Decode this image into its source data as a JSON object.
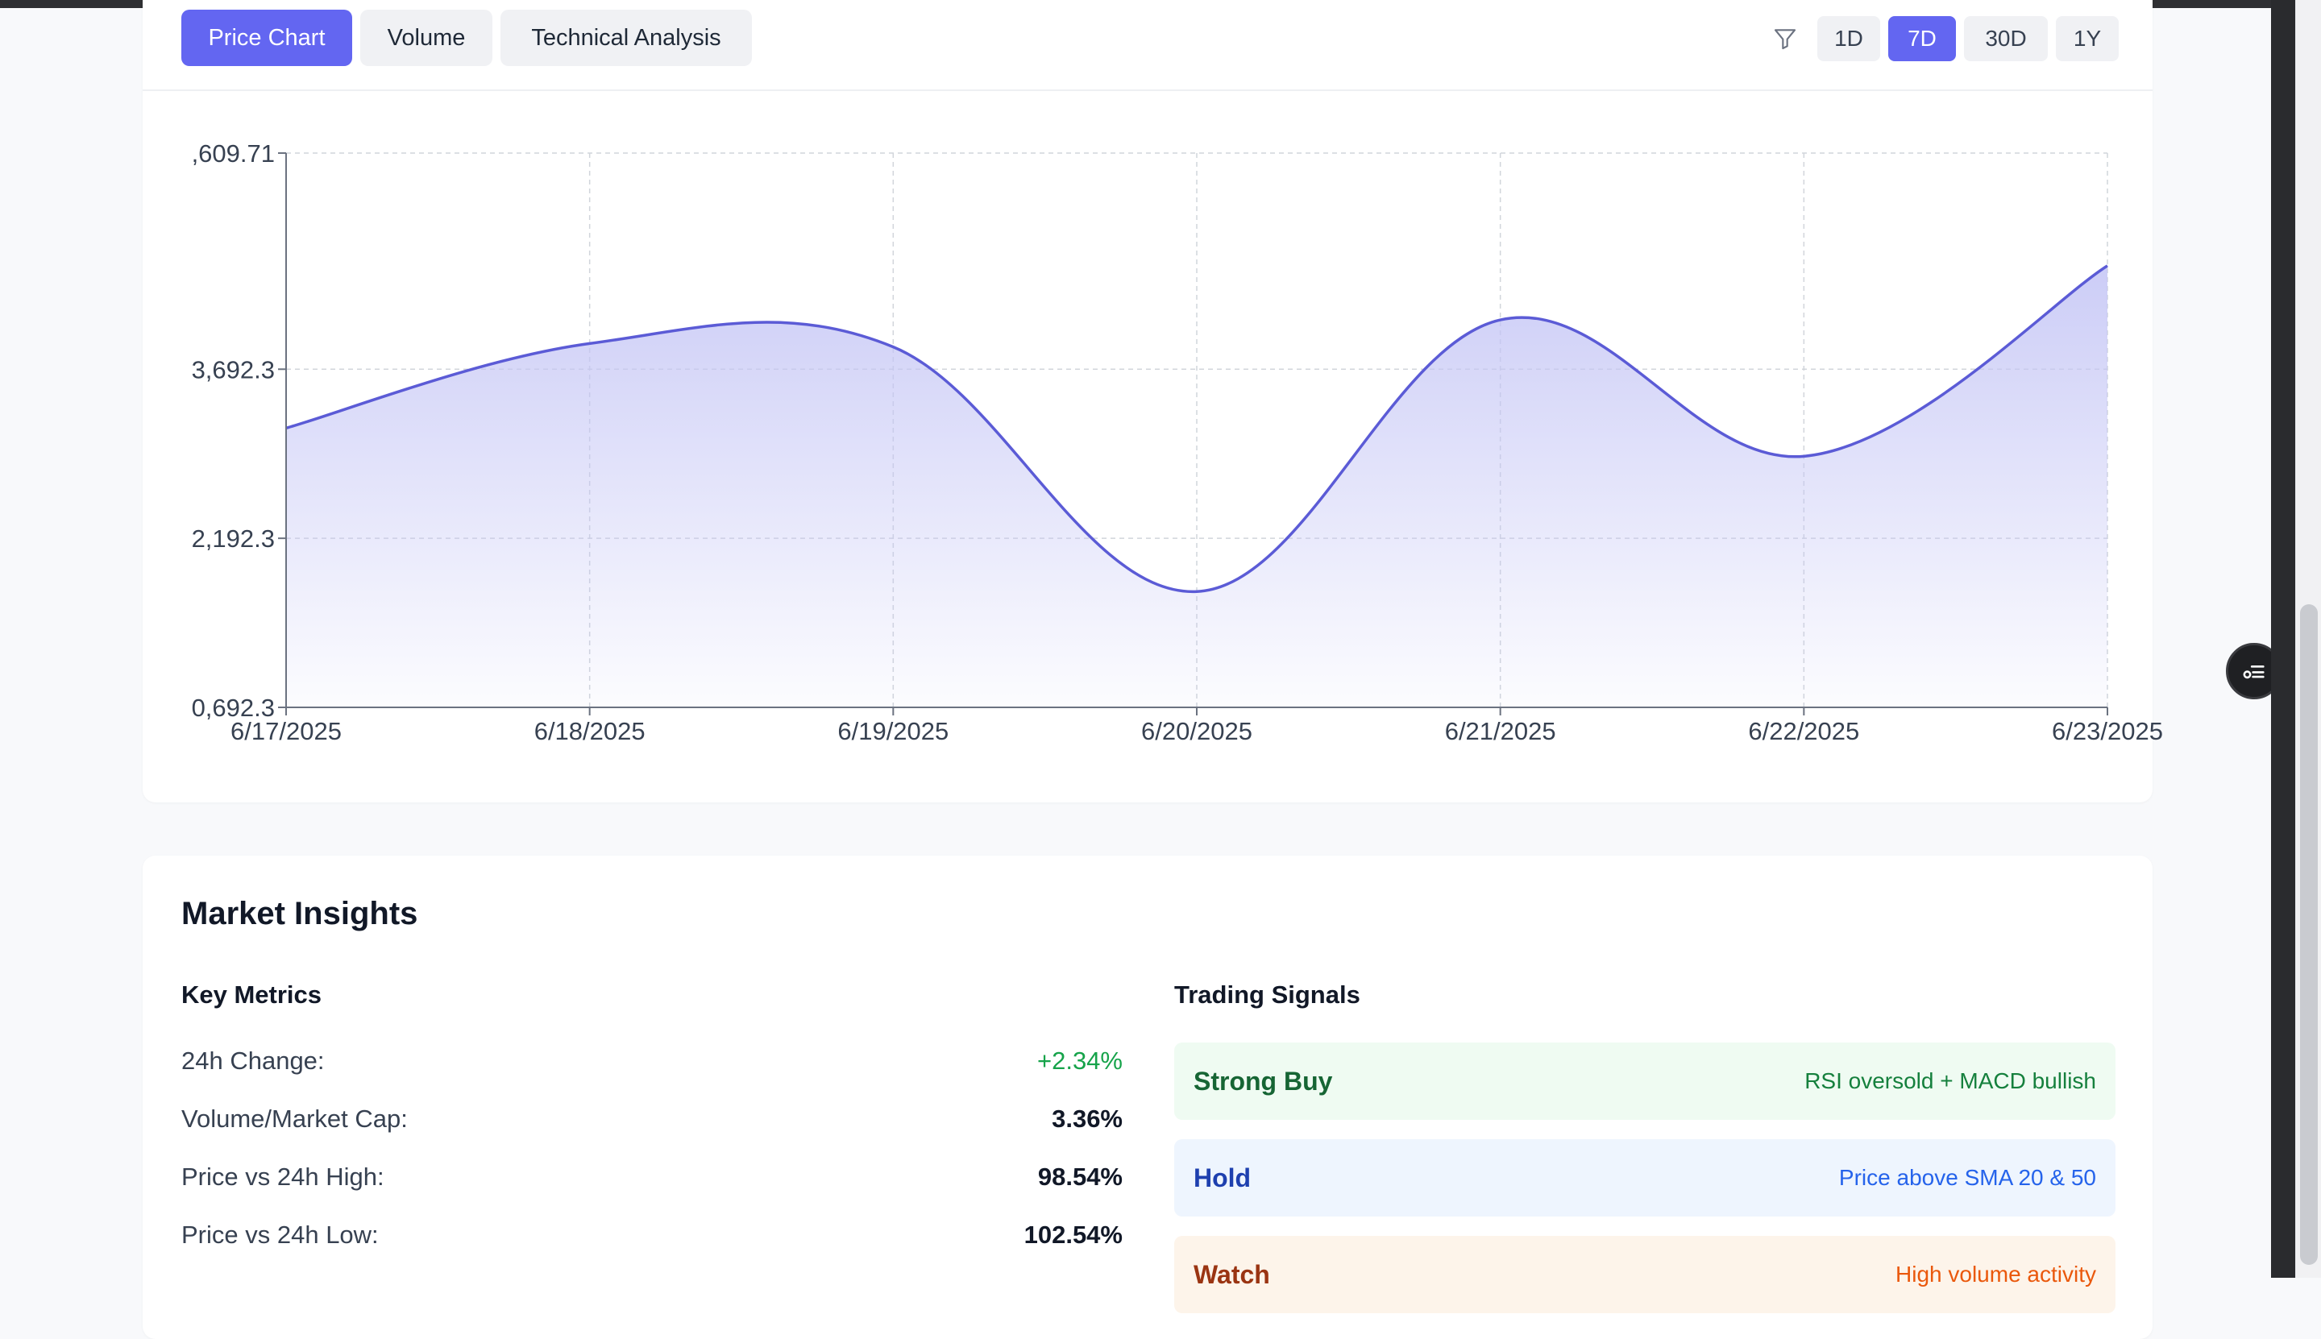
{
  "tabs": [
    {
      "label": "Price Chart",
      "active": true
    },
    {
      "label": "Volume",
      "active": false
    },
    {
      "label": "Technical Analysis",
      "active": false
    }
  ],
  "filter_icon": "filter-icon",
  "ranges": [
    {
      "label": "1D",
      "active": false
    },
    {
      "label": "7D",
      "active": true
    },
    {
      "label": "30D",
      "active": false
    },
    {
      "label": "1Y",
      "active": false
    }
  ],
  "chart_data": {
    "type": "area",
    "x": [
      "6/17/2025",
      "6/18/2025",
      "6/19/2025",
      "6/20/2025",
      "6/21/2025",
      "6/22/2025",
      "6/23/2025"
    ],
    "y_tick_labels": [
      ",609.71",
      "3,692.3",
      "2,192.3",
      "0,692.3"
    ],
    "y_ticks": [
      5609.71,
      3692.3,
      2192.3,
      692.3
    ],
    "series": [
      {
        "values": [
          3170,
          3920,
          3890,
          1720,
          4130,
          2920,
          4610
        ]
      }
    ],
    "ylim": [
      692.3,
      5609.71
    ],
    "grid": true,
    "line_color": "#5b5bd6",
    "fill_color": "#c7c8f7"
  },
  "insights": {
    "title": "Market Insights",
    "key_metrics_title": "Key Metrics",
    "trading_signals_title": "Trading Signals",
    "metrics": [
      {
        "label": "24h Change:",
        "value": "+2.34%",
        "positive": true
      },
      {
        "label": "Volume/Market Cap:",
        "value": "3.36%",
        "positive": false
      },
      {
        "label": "Price vs 24h High:",
        "value": "98.54%",
        "positive": false
      },
      {
        "label": "Price vs 24h Low:",
        "value": "102.54%",
        "positive": false
      }
    ],
    "signals": [
      {
        "name": "Strong Buy",
        "desc": "RSI oversold + MACD bullish",
        "kind": "buy"
      },
      {
        "name": "Hold",
        "desc": "Price above SMA 20 & 50",
        "kind": "hold"
      },
      {
        "name": "Watch",
        "desc": "High volume activity",
        "kind": "watch"
      }
    ]
  },
  "float_button_icon": "filter-list-icon"
}
